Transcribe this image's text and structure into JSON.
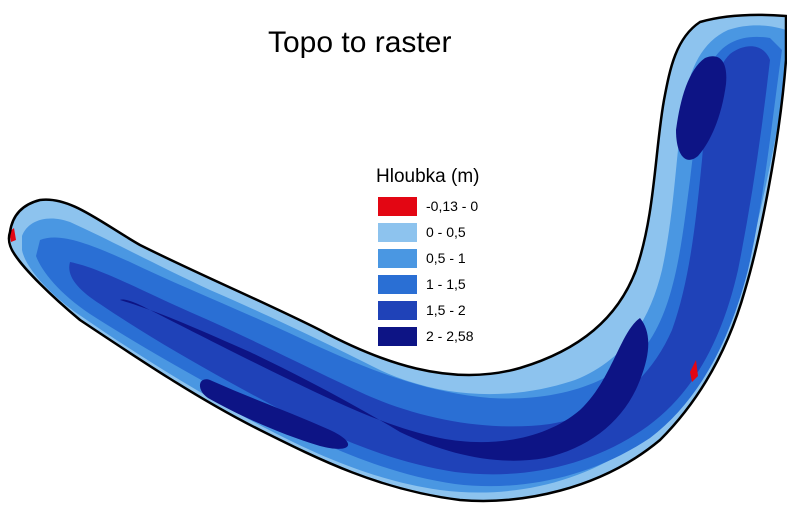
{
  "map": {
    "title": "Topo to raster"
  },
  "legend": {
    "title": "Hloubka (m)",
    "items": [
      {
        "label": "-0,13 - 0",
        "color": "#e30613"
      },
      {
        "label": "0 - 0,5",
        "color": "#8dc3ee"
      },
      {
        "label": "0,5 - 1",
        "color": "#4a97e2"
      },
      {
        "label": "1 - 1,5",
        "color": "#2a6fd4"
      },
      {
        "label": "1,5 - 2",
        "color": "#1f42b8"
      },
      {
        "label": "2 - 2,58",
        "color": "#0d1485"
      }
    ]
  },
  "colors": {
    "outline": "#000000",
    "background": "#ffffff"
  }
}
